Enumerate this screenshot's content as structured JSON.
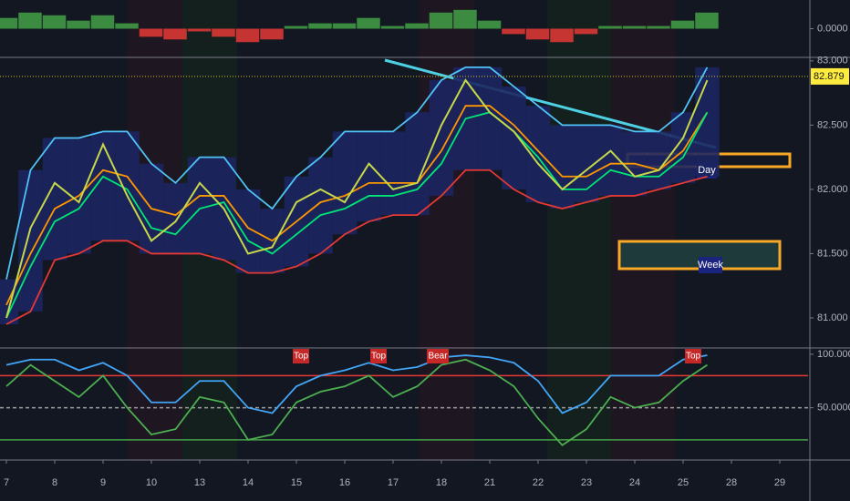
{
  "chart_data": [
    {
      "type": "bar",
      "values": [
        0.4,
        0.6,
        0.5,
        0.3,
        0.5,
        0.2,
        -0.3,
        -0.4,
        -0.1,
        -0.3,
        -0.5,
        -0.4,
        0.1,
        0.2,
        0.2,
        0.4,
        0.1,
        0.2,
        0.6,
        0.7,
        0.3,
        -0.2,
        -0.4,
        -0.5,
        -0.2,
        0.1,
        0.1,
        0.1,
        0.3,
        0.6,
        null,
        null,
        null,
        null
      ],
      "colors": {
        "positive": "#43a047",
        "negative": "#e53935"
      },
      "ylim": [
        -1,
        1
      ],
      "yticks": [
        {
          "value": 0,
          "label": "0.0000"
        }
      ]
    },
    {
      "type": "line",
      "categories": [
        "7",
        null,
        "8",
        null,
        "9",
        null,
        "10",
        null,
        "13",
        null,
        "14",
        null,
        "15",
        null,
        "16",
        null,
        "17",
        null,
        "18",
        null,
        "21",
        null,
        "22",
        null,
        "23",
        null,
        "24",
        null,
        "25",
        null,
        "28",
        null,
        "29",
        null
      ],
      "series": [
        {
          "color": "#4fc3f7",
          "values": [
            81.3,
            82.15,
            82.4,
            82.4,
            82.45,
            82.45,
            82.2,
            82.05,
            82.25,
            82.25,
            82.0,
            81.85,
            82.1,
            82.25,
            82.45,
            82.45,
            82.45,
            82.6,
            82.85,
            82.95,
            82.95,
            82.8,
            82.65,
            82.5,
            82.5,
            82.5,
            82.45,
            82.45,
            82.6,
            82.95,
            null,
            null,
            null,
            null
          ]
        },
        {
          "color": "#e53935",
          "values": [
            80.95,
            81.05,
            81.45,
            81.5,
            81.6,
            81.6,
            81.5,
            81.5,
            81.5,
            81.45,
            81.35,
            81.35,
            81.4,
            81.5,
            81.65,
            81.75,
            81.8,
            81.8,
            81.95,
            82.15,
            82.15,
            82.0,
            81.9,
            81.85,
            81.9,
            81.95,
            81.95,
            82.0,
            82.05,
            82.1,
            null,
            null,
            null,
            null
          ]
        },
        {
          "color": "#ff9800",
          "values": [
            81.1,
            81.5,
            81.85,
            81.95,
            82.15,
            82.1,
            81.85,
            81.8,
            81.95,
            81.95,
            81.7,
            81.6,
            81.75,
            81.9,
            81.95,
            82.05,
            82.05,
            82.05,
            82.3,
            82.65,
            82.65,
            82.5,
            82.3,
            82.1,
            82.1,
            82.2,
            82.2,
            82.15,
            82.3,
            82.6,
            null,
            null,
            null,
            null
          ]
        },
        {
          "color": "#00e676",
          "values": [
            81.0,
            81.4,
            81.75,
            81.85,
            82.1,
            82.0,
            81.7,
            81.65,
            81.85,
            81.9,
            81.6,
            81.5,
            81.65,
            81.8,
            81.85,
            81.95,
            81.95,
            82.0,
            82.2,
            82.55,
            82.6,
            82.45,
            82.25,
            82.0,
            82.0,
            82.15,
            82.1,
            82.1,
            82.25,
            82.6,
            null,
            null,
            null,
            null
          ]
        },
        {
          "color": "#c6d84a",
          "values": [
            81.0,
            81.7,
            82.05,
            81.9,
            82.35,
            81.95,
            81.6,
            81.75,
            82.05,
            81.85,
            81.5,
            81.55,
            81.9,
            82.0,
            81.9,
            82.2,
            82.0,
            82.05,
            82.5,
            82.85,
            82.6,
            82.45,
            82.2,
            82.0,
            82.15,
            82.3,
            82.1,
            82.15,
            82.4,
            82.85,
            null,
            null,
            null,
            null
          ]
        }
      ],
      "band_fill": "#1c2560",
      "last_price": 82.879,
      "ylim": [
        80.78,
        83.02
      ],
      "yticks": [
        {
          "value": 81,
          "label": "81.000"
        },
        {
          "value": 81.5,
          "label": "81.500"
        },
        {
          "value": 82,
          "label": "82.000"
        },
        {
          "value": 82.5,
          "label": "82.500"
        },
        {
          "value": 83,
          "label": "83.000"
        }
      ],
      "annotations": [
        "Day",
        "Week"
      ]
    },
    {
      "type": "line",
      "series": [
        {
          "color": "#42a5f5",
          "values": [
            90,
            95,
            95,
            85,
            92,
            80,
            55,
            55,
            75,
            75,
            50,
            45,
            70,
            80,
            85,
            92,
            85,
            88,
            97,
            99,
            97,
            92,
            75,
            45,
            55,
            80,
            80,
            80,
            95,
            99,
            null,
            null,
            null,
            null
          ]
        },
        {
          "color": "#4caf50",
          "values": [
            70,
            90,
            75,
            60,
            80,
            50,
            25,
            30,
            60,
            55,
            20,
            25,
            55,
            65,
            70,
            80,
            60,
            70,
            90,
            95,
            85,
            70,
            40,
            15,
            30,
            60,
            50,
            55,
            75,
            90,
            null,
            null,
            null,
            null
          ]
        }
      ],
      "reference_lines": [
        {
          "value": 80,
          "color": "#e53935"
        },
        {
          "value": 50,
          "color": "#9e9e9e"
        },
        {
          "value": 20,
          "color": "#43a047"
        }
      ],
      "ylim": [
        2,
        105
      ],
      "yticks": [
        {
          "value": 50,
          "label": "50.0000"
        },
        {
          "value": 100,
          "label": "100.0000"
        }
      ],
      "annotations": [
        "Top",
        "Top",
        "Bear",
        "Top"
      ]
    }
  ]
}
